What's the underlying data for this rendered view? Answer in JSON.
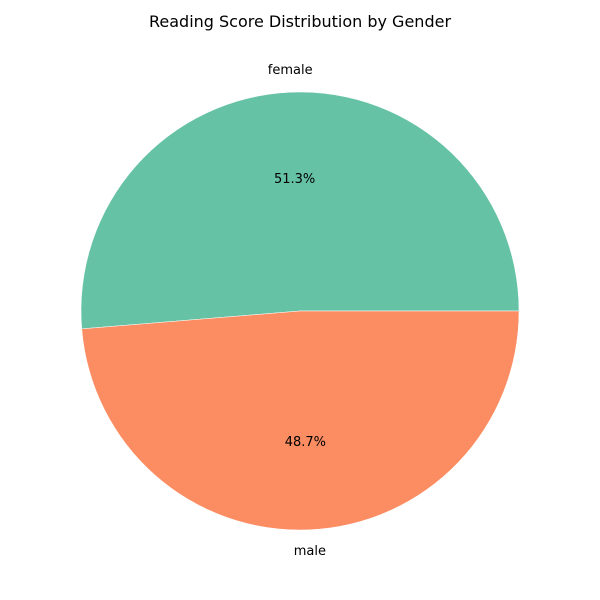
{
  "chart_data": {
    "type": "pie",
    "title": "Reading Score Distribution by Gender",
    "categories": [
      "female",
      "male"
    ],
    "values": [
      51.3,
      48.7
    ],
    "value_labels": [
      "51.3%",
      "48.7%"
    ],
    "colors": [
      "#66c2a5",
      "#fc8d62"
    ],
    "start_angle_deg": 0,
    "direction": "counterclockwise",
    "legend": "none"
  }
}
